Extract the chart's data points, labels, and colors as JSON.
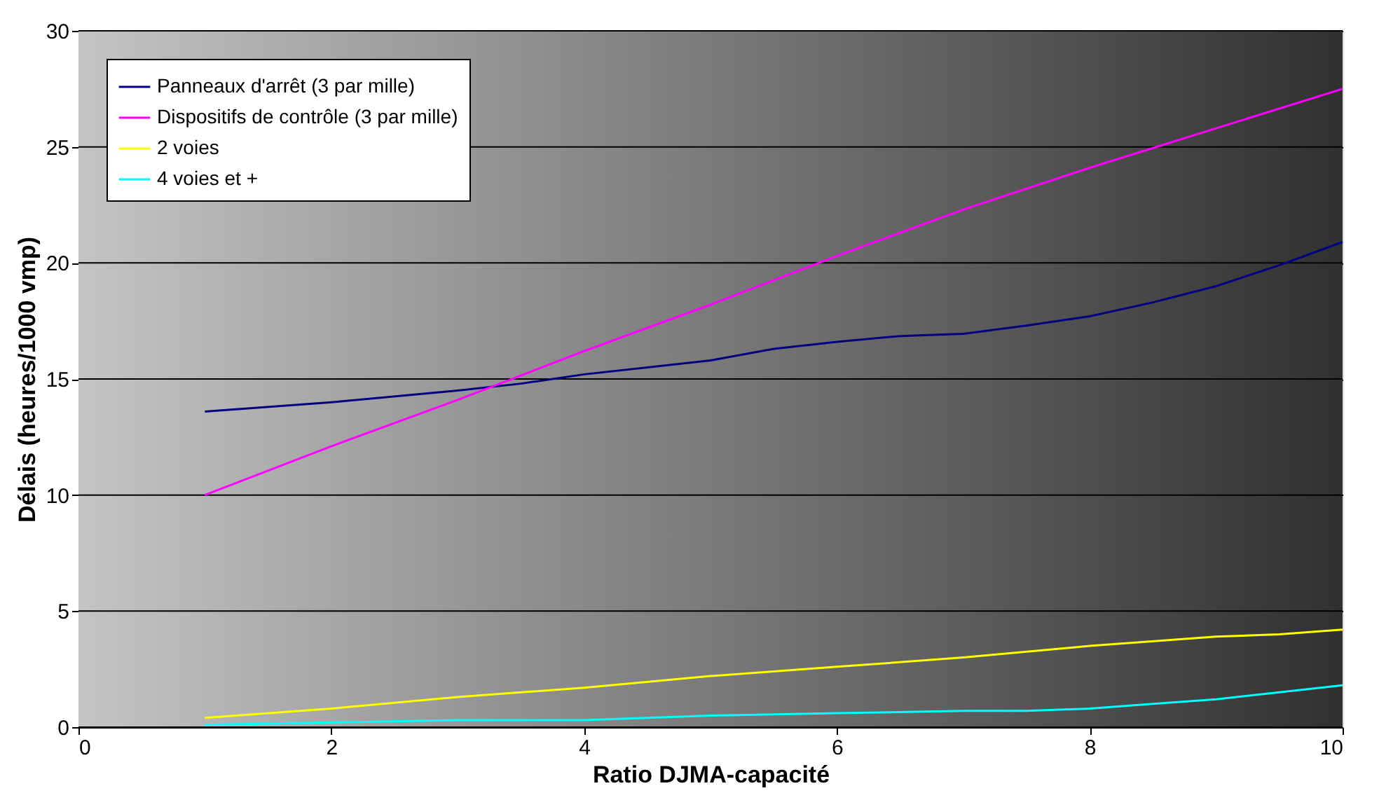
{
  "chart_data": {
    "type": "line",
    "xlabel": "Ratio DJMA-capacité",
    "ylabel": "Délais (heures/1000 vmp)",
    "xlim": [
      0,
      10
    ],
    "xticks": [
      0,
      2,
      4,
      6,
      8,
      10
    ],
    "ylim": [
      0,
      30
    ],
    "yticks": [
      0,
      5,
      10,
      15,
      20,
      25,
      30
    ],
    "grid": "y",
    "legend": "top left",
    "marker": "none",
    "line_style": "solid",
    "series": [
      {
        "name": "Panneaux d'arrêt (3 par mille)",
        "color": "#000080",
        "x": [
          1,
          2,
          3,
          3.5,
          4,
          4.5,
          5,
          5.5,
          6,
          6.5,
          7,
          7.5,
          8,
          8.5,
          9,
          9.5,
          10
        ],
        "values": [
          13.6,
          14.0,
          14.5,
          14.8,
          15.2,
          15.5,
          15.8,
          16.3,
          16.6,
          16.85,
          16.95,
          17.3,
          17.7,
          18.3,
          19.0,
          19.9,
          20.9
        ]
      },
      {
        "name": "Dispositifs de contrôle (3 par mille)",
        "color": "#ff00ff",
        "x": [
          1,
          2,
          3,
          4,
          5,
          6,
          7,
          8,
          9,
          10
        ],
        "values": [
          10.0,
          12.1,
          14.1,
          16.2,
          18.2,
          20.3,
          22.3,
          24.1,
          25.8,
          27.5
        ]
      },
      {
        "name": "2 voies",
        "color": "#ffff00",
        "x": [
          1,
          2,
          3,
          4,
          5,
          6,
          7,
          8,
          9,
          9.5,
          10
        ],
        "values": [
          0.4,
          0.8,
          1.3,
          1.7,
          2.2,
          2.6,
          3.0,
          3.5,
          3.9,
          4.0,
          4.2
        ]
      },
      {
        "name": "4 voies et +",
        "color": "#00ffff",
        "x": [
          1,
          2,
          3,
          4,
          5,
          6,
          7,
          7.5,
          8,
          8.5,
          9,
          9.5,
          10
        ],
        "values": [
          0.1,
          0.2,
          0.3,
          0.3,
          0.5,
          0.6,
          0.7,
          0.7,
          0.8,
          1.0,
          1.2,
          1.5,
          1.8
        ]
      }
    ]
  }
}
